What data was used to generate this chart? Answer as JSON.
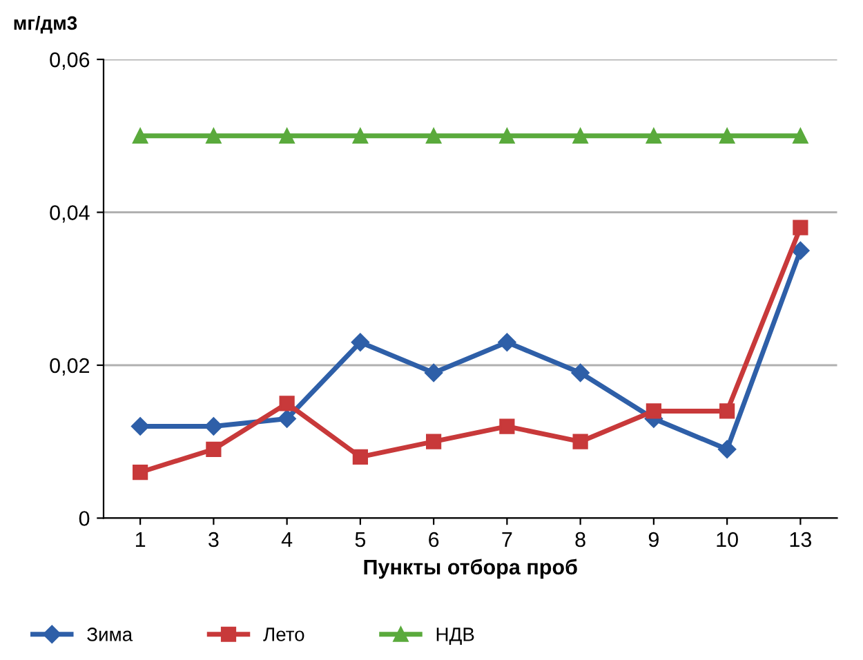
{
  "chart_data": {
    "type": "line",
    "ylabel": "мг/дм3",
    "xlabel": "Пункты отбора проб",
    "categories": [
      "1",
      "3",
      "4",
      "5",
      "6",
      "7",
      "8",
      "9",
      "10",
      "13"
    ],
    "series": [
      {
        "name": "Зима",
        "color": "#2e5fa8",
        "marker": "diamond",
        "values": [
          0.012,
          0.012,
          0.013,
          0.023,
          0.019,
          0.023,
          0.019,
          0.013,
          0.009,
          0.035
        ]
      },
      {
        "name": "Лето",
        "color": "#c8393a",
        "marker": "square",
        "values": [
          0.006,
          0.009,
          0.015,
          0.008,
          0.01,
          0.012,
          0.01,
          0.014,
          0.014,
          0.038
        ]
      },
      {
        "name": "НДВ",
        "color": "#5aaa3c",
        "marker": "triangle",
        "values": [
          0.05,
          0.05,
          0.05,
          0.05,
          0.05,
          0.05,
          0.05,
          0.05,
          0.05,
          0.05
        ]
      }
    ],
    "ylim": [
      0,
      0.06
    ],
    "yticks": [
      {
        "value": 0,
        "label": "0"
      },
      {
        "value": 0.02,
        "label": "0,02"
      },
      {
        "value": 0.04,
        "label": "0,04"
      },
      {
        "value": 0.06,
        "label": "0,06"
      }
    ],
    "grid": "y",
    "legend": "bottom",
    "line_style": "solid"
  }
}
